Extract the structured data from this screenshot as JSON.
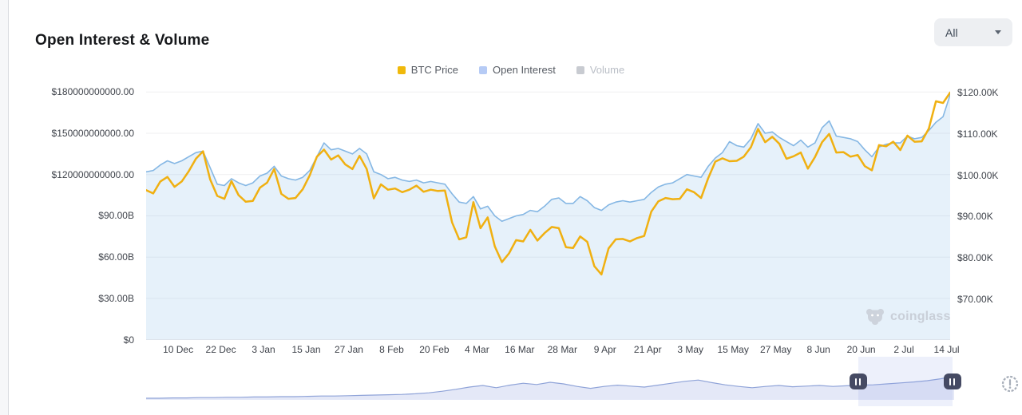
{
  "header": {
    "title": "Open Interest & Volume",
    "range_selector": {
      "value": "All"
    }
  },
  "legend": {
    "items": [
      {
        "label": "BTC Price",
        "color": "#F0B90B",
        "active": true
      },
      {
        "label": "Open Interest",
        "color": "#B6CBF5",
        "active": true
      },
      {
        "label": "Volume",
        "color": "#C8CBD1",
        "active": false
      }
    ]
  },
  "chart_data": {
    "type": "line",
    "title": "Open Interest & Volume",
    "grid": "horizontal",
    "x_start_date": "1 Dec",
    "x_end_date": "15 Jul",
    "x_step_days": 2,
    "x_total_days": 226,
    "x_ticks": [
      {
        "label": "10 Dec",
        "day": 9
      },
      {
        "label": "22 Dec",
        "day": 21
      },
      {
        "label": "3 Jan",
        "day": 33
      },
      {
        "label": "15 Jan",
        "day": 45
      },
      {
        "label": "27 Jan",
        "day": 57
      },
      {
        "label": "8 Feb",
        "day": 69
      },
      {
        "label": "20 Feb",
        "day": 81
      },
      {
        "label": "4 Mar",
        "day": 93
      },
      {
        "label": "16 Mar",
        "day": 105
      },
      {
        "label": "28 Mar",
        "day": 117
      },
      {
        "label": "9 Apr",
        "day": 129
      },
      {
        "label": "21 Apr",
        "day": 141
      },
      {
        "label": "3 May",
        "day": 153
      },
      {
        "label": "15 May",
        "day": 165
      },
      {
        "label": "27 May",
        "day": 177
      },
      {
        "label": "8 Jun",
        "day": 189
      },
      {
        "label": "20 Jun",
        "day": 201
      },
      {
        "label": "2 Jul",
        "day": 213
      },
      {
        "label": "14 Jul",
        "day": 225
      }
    ],
    "left_axis": {
      "unit": "USD billions",
      "tick_values": [
        180,
        150,
        120,
        90,
        60,
        30,
        0
      ],
      "tick_labels": [
        "$180000000000.00",
        "$150000000000.00",
        "$120000000000.00",
        "$90.00B",
        "$60.00B",
        "$30.00B",
        "$0"
      ],
      "range": [
        0,
        180
      ]
    },
    "right_axis": {
      "unit": "USD thousands",
      "tick_values": [
        120,
        110,
        100,
        90,
        80,
        70
      ],
      "tick_labels": [
        "$120.00K",
        "$110.00K",
        "$100.00K",
        "$90.00K",
        "$80.00K",
        "$70.00K"
      ],
      "range": [
        60,
        122
      ]
    },
    "series": [
      {
        "name": "BTC Price",
        "axis": "right",
        "unit": "USD thousands",
        "color": "#F0B011",
        "values": [
          96.4,
          95.6,
          98.5,
          99.6,
          97.2,
          98.5,
          101,
          104,
          105.8,
          99,
          95,
          94.3,
          98.6,
          95.2,
          93.6,
          93.8,
          97,
          98.2,
          101.5,
          95.5,
          94.3,
          94.5,
          96.6,
          100,
          104.5,
          106.2,
          103.8,
          104.8,
          102.6,
          101.5,
          104.7,
          101.5,
          94.4,
          97.8,
          96.5,
          96.8,
          95.9,
          96.5,
          97.5,
          96,
          96.5,
          96.2,
          96.3,
          88.6,
          84.5,
          85,
          93.5,
          87.2,
          89.8,
          82.8,
          79,
          81.1,
          84.3,
          84,
          86.8,
          84.2,
          86,
          87.5,
          87.2,
          82.6,
          82.4,
          85.2,
          83.9,
          78,
          76,
          82.3,
          84.5,
          84.6,
          84,
          84.8,
          85.3,
          91.2,
          93.7,
          94.5,
          94.2,
          94.3,
          96.6,
          95.9,
          94.5,
          99.3,
          103.3,
          104.1,
          103.4,
          103.5,
          104.5,
          106.8,
          111.2,
          108,
          109.3,
          107.6,
          104,
          104.6,
          105.5,
          101.6,
          104.4,
          108,
          110,
          105.5,
          105.6,
          104.5,
          104.9,
          102.2,
          101.2,
          107.3,
          107,
          108.1,
          106.1,
          109.6,
          108.1,
          108.2,
          111.3,
          117.9,
          117.5,
          120
        ]
      },
      {
        "name": "Open Interest",
        "axis": "left",
        "unit": "USD billions",
        "color": "#85B7E4",
        "fill": "rgba(140,190,231,0.22)",
        "values": [
          122,
          123,
          127,
          130,
          128,
          130,
          133,
          136,
          137,
          125,
          113,
          112,
          117,
          114,
          112,
          114,
          119,
          121,
          126,
          119,
          117,
          116,
          118,
          123,
          133,
          143,
          138,
          139,
          137,
          135,
          139,
          135,
          122,
          120,
          117,
          118,
          116,
          115,
          116,
          114,
          115,
          114,
          113,
          106,
          100,
          99,
          104,
          95,
          97,
          90,
          86,
          88,
          90,
          91,
          94,
          93,
          97,
          102,
          103,
          99,
          99,
          104,
          101,
          96,
          94,
          98,
          100,
          101,
          100,
          101,
          102,
          107,
          111,
          113,
          114,
          117,
          120,
          119,
          118,
          126,
          132,
          136,
          144,
          141,
          140,
          146,
          157,
          150,
          151,
          147,
          144,
          141,
          145,
          140,
          143,
          154,
          159,
          148,
          147,
          146,
          144,
          138,
          133,
          140,
          142,
          143,
          143,
          148,
          146,
          147,
          152,
          158,
          162,
          178
        ]
      }
    ]
  },
  "navigator": {
    "description": "full-history open interest minimap",
    "line_color": "#8FA3D8",
    "fill_color": "rgba(166,180,228,0.3)",
    "values": [
      0.05,
      0.05,
      0.06,
      0.06,
      0.07,
      0.07,
      0.08,
      0.08,
      0.09,
      0.09,
      0.1,
      0.1,
      0.11,
      0.12,
      0.12,
      0.13,
      0.14,
      0.15,
      0.16,
      0.17,
      0.19,
      0.22,
      0.27,
      0.33,
      0.4,
      0.45,
      0.38,
      0.46,
      0.52,
      0.48,
      0.55,
      0.5,
      0.42,
      0.36,
      0.42,
      0.46,
      0.43,
      0.4,
      0.46,
      0.52,
      0.58,
      0.62,
      0.54,
      0.47,
      0.42,
      0.38,
      0.42,
      0.45,
      0.41,
      0.43,
      0.45,
      0.42,
      0.44,
      0.46,
      0.47,
      0.5,
      0.53,
      0.56,
      0.6,
      0.66,
      0.74
    ],
    "selection": {
      "start_pct": 88.1,
      "end_pct": 99.8
    }
  },
  "watermark": {
    "text": "coinglass"
  },
  "colors": {
    "grid_line": "#efeff1",
    "axis_text": "#3f434b",
    "title_text": "#16181b",
    "dropdown_bg": "#edeff2",
    "handle_bg": "#454a63",
    "watermark_text": "#c9cfd8"
  }
}
